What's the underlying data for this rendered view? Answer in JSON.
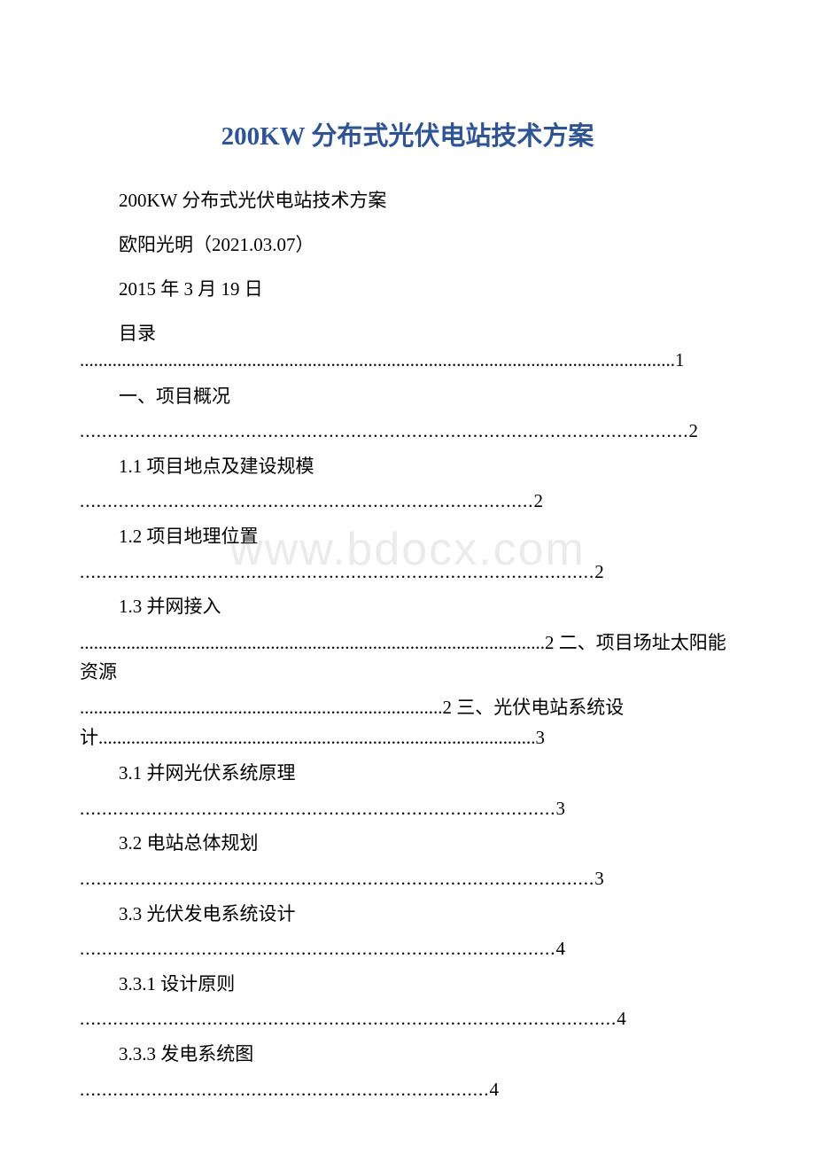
{
  "title": "200KW 分布式光伏电站技术方案",
  "subtitle": "200KW 分布式光伏电站技术方案",
  "author": "欧阳光明（2021.03.07）",
  "date": "2015 年 3 月 19 日",
  "toc_label": "目录",
  "watermark": "www.bdocx.com",
  "colors": {
    "title_color": "#2e5496",
    "text_color": "#000000",
    "background_color": "#ffffff",
    "watermark_color": "#ebebeb"
  },
  "typography": {
    "title_fontsize": 29,
    "body_fontsize": 21,
    "watermark_fontsize": 52,
    "title_font": "Times New Roman, SimSun",
    "body_font": "SimSun"
  },
  "toc_entries": [
    {
      "label": "",
      "page": "1",
      "indent": false
    },
    {
      "label": "一、项目概况",
      "page": "2",
      "indent": true
    },
    {
      "label": "1.1 项目地点及建设规模",
      "page": "2",
      "indent": true
    },
    {
      "label": "1.2 项目地理位置",
      "page": "2",
      "indent": true
    },
    {
      "label": "1.3 并网接入",
      "page": "2",
      "indent": true,
      "inline_next": "二、项目场址太阳能资源"
    },
    {
      "label": "",
      "page": "2",
      "indent": false,
      "inline_next": "三、光伏电站系统设计",
      "inline_page": "3"
    },
    {
      "label": "3.1 并网光伏系统原理",
      "page": "3",
      "indent": true
    },
    {
      "label": "3.2 电站总体规划",
      "page": "3",
      "indent": true
    },
    {
      "label": "3.3 光伏发电系统设计",
      "page": "4",
      "indent": true
    },
    {
      "label": "3.3.1 设计原则",
      "page": "4",
      "indent": true
    },
    {
      "label": "3.3.3 发电系统图",
      "page": "4",
      "indent": true
    }
  ],
  "toc_block_1": "................................................................................................................................1",
  "toc_line_1": "一、项目概况",
  "toc_dots_1": "..............................................................................................................2",
  "toc_line_2": "1.1 项目地点及建设规模",
  "toc_dots_2": "..................................................................................2",
  "toc_line_3": "1.2 项目地理位置",
  "toc_dots_3": ".............................................................................................2",
  "toc_line_4": "1.3 并网接入",
  "toc_dots_4_text": "....................................................................................................2 二、项目场址太阳能资源",
  "toc_dots_5_text": "..............................................................................2 三、光伏电站系统设计..............................................................................................3",
  "toc_line_6": "3.1 并网光伏系统原理",
  "toc_dots_6": "......................................................................................3",
  "toc_line_7": "3.2 电站总体规划",
  "toc_dots_7": ".............................................................................................3",
  "toc_line_8": "3.3 光伏发电系统设计",
  "toc_dots_8": "......................................................................................4",
  "toc_line_9": "3.3.1 设计原则",
  "toc_dots_9": ".................................................................................................4",
  "toc_line_10": "3.3.3 发电系统图",
  "toc_dots_10": "..........................................................................4"
}
